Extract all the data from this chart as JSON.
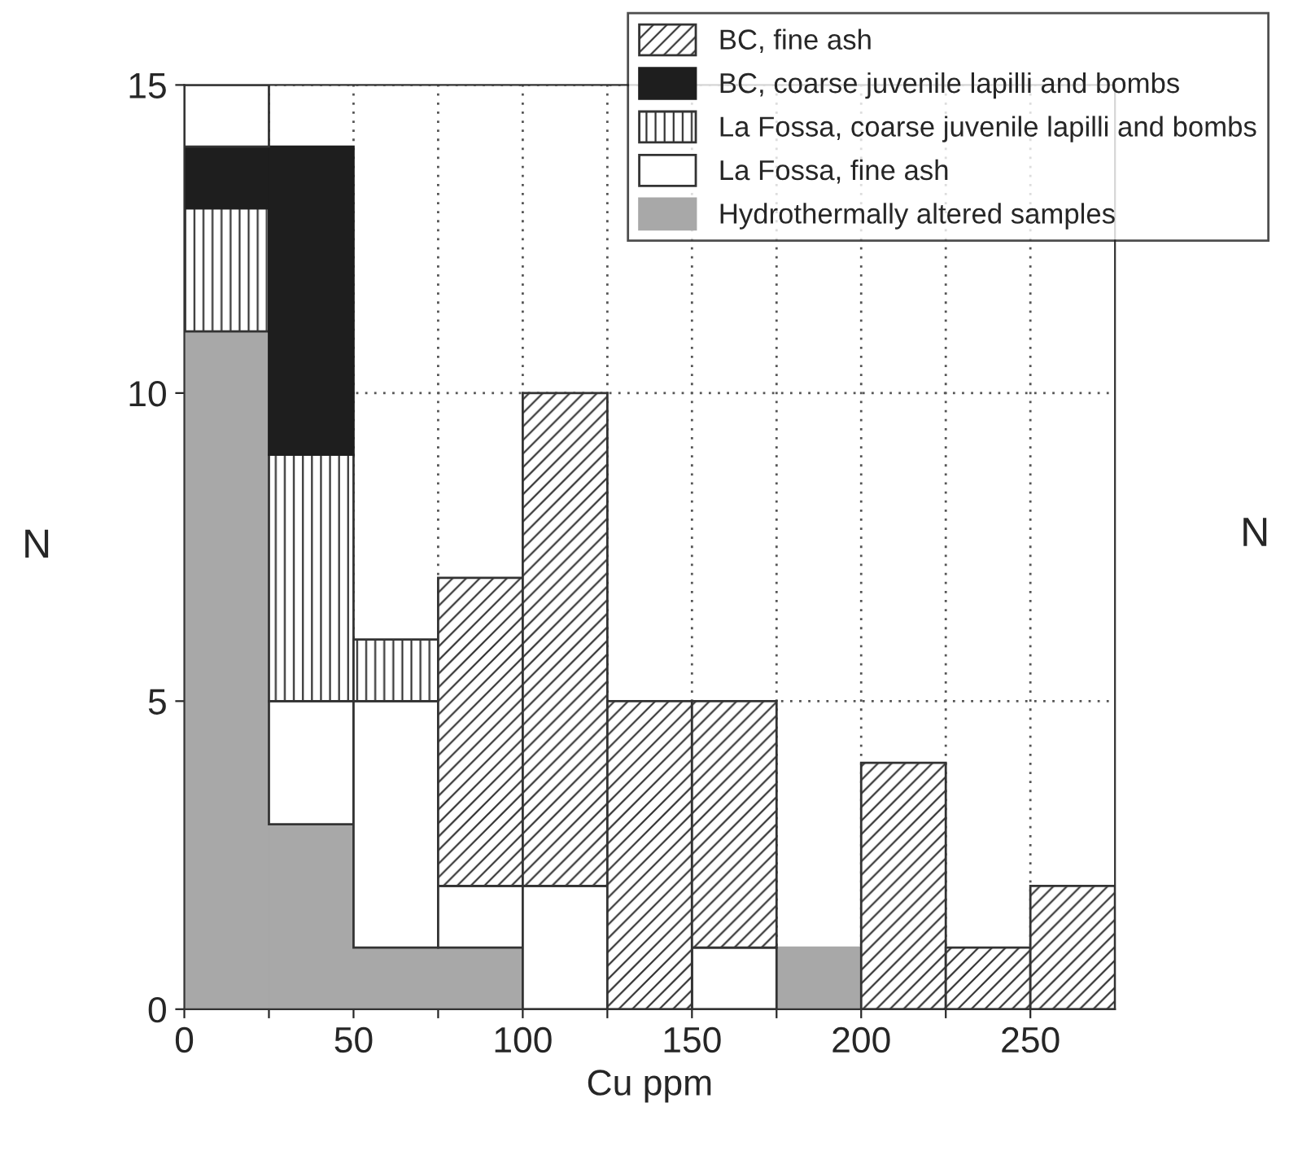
{
  "chart_data": {
    "type": "bar",
    "xlabel": "Cu ppm",
    "ylabel": "N",
    "x": [
      12.5,
      37.5,
      62.5,
      87.5,
      112.5,
      137.5,
      162.5,
      187.5,
      212.5,
      237.5,
      262.5
    ],
    "stacked": true,
    "series": [
      {
        "name": "Hydrothermally altered samples",
        "color": "#a8a8a8",
        "values": [
          11,
          3,
          1,
          1,
          0,
          0,
          0,
          1,
          0,
          0,
          0
        ]
      },
      {
        "name": "La Fossa, fine ash",
        "color": "#ffffff",
        "values": [
          0,
          2,
          4,
          1,
          2,
          0,
          1,
          0,
          0,
          0,
          0
        ]
      },
      {
        "name": "La Fossa, coarse juvenile lapilli and bombs",
        "color": "#333333",
        "values": [
          2,
          4,
          1,
          0,
          0,
          0,
          0,
          0,
          0,
          0,
          0
        ]
      },
      {
        "name": "BC, coarse juvenile lapilli and bombs",
        "color": "#1e1e1e",
        "values": [
          1,
          5,
          0,
          0,
          0,
          0,
          0,
          0,
          0,
          0,
          0
        ]
      },
      {
        "name": "BC, fine ash",
        "color": "#333333",
        "values": [
          0,
          0,
          0,
          5,
          8,
          5,
          4,
          0,
          4,
          1,
          2
        ]
      },
      {
        "color": "#ffffff",
        "values": [
          1,
          0,
          0,
          0,
          0,
          0,
          0,
          0,
          0,
          0,
          0
        ]
      }
    ],
    "xlim": [
      0,
      275
    ],
    "ylim": [
      0,
      15
    ],
    "xticks": [
      0,
      {
        "value": 25,
        "label": null
      },
      50,
      {
        "value": 75,
        "label": null
      },
      100,
      {
        "value": 125,
        "label": null
      },
      150,
      {
        "value": 175,
        "label": null
      },
      200,
      {
        "value": 225,
        "label": null
      },
      250
    ],
    "yticks": [
      0,
      5,
      10,
      15
    ],
    "grid": true,
    "legend": "top right",
    "annotations": [
      "N"
    ]
  }
}
